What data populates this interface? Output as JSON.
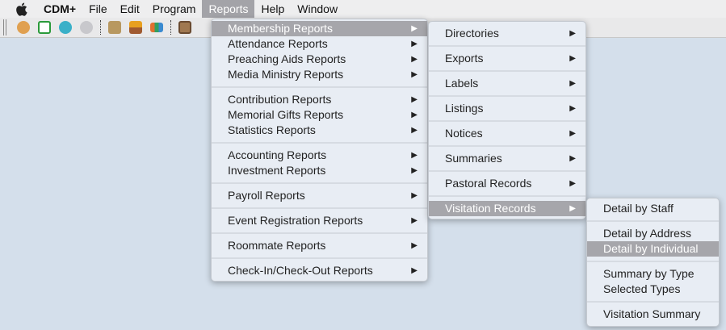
{
  "menubar": {
    "app": "CDM+",
    "items": [
      "File",
      "Edit",
      "Program",
      "Reports",
      "Help",
      "Window"
    ],
    "active": "Reports"
  },
  "toolbar": {
    "icons": [
      "handshake-icon",
      "checkbox-icon",
      "person-icon",
      "disc-icon",
      "certificate-icon",
      "plant-icon",
      "bar-chart-icon",
      "abacus-icon"
    ]
  },
  "reports_menu": {
    "groups": [
      [
        "Membership Reports",
        "Attendance Reports",
        "Preaching Aids Reports",
        "Media Ministry Reports"
      ],
      [
        "Contribution Reports",
        "Memorial Gifts Reports",
        "Statistics Reports"
      ],
      [
        "Accounting Reports",
        "Investment Reports"
      ],
      [
        "Payroll Reports"
      ],
      [
        "Event Registration Reports"
      ],
      [
        "Roommate Reports"
      ],
      [
        "Check-In/Check-Out Reports"
      ]
    ],
    "highlighted": "Membership Reports"
  },
  "membership_menu": {
    "items": [
      "Directories",
      "Exports",
      "Labels",
      "Listings",
      "Notices",
      "Summaries",
      "Pastoral Records",
      "Visitation Records"
    ],
    "highlighted": "Visitation Records"
  },
  "visitation_menu": {
    "groups": [
      [
        "Detail by Staff"
      ],
      [
        "Detail by Address",
        "Detail by Individual"
      ],
      [
        "Summary by Type",
        "Selected Types"
      ],
      [
        "Visitation Summary"
      ]
    ],
    "highlighted": "Detail by Individual"
  },
  "colors": {
    "highlight": "#a6a6ab",
    "desktop": "#d4dfeb"
  }
}
